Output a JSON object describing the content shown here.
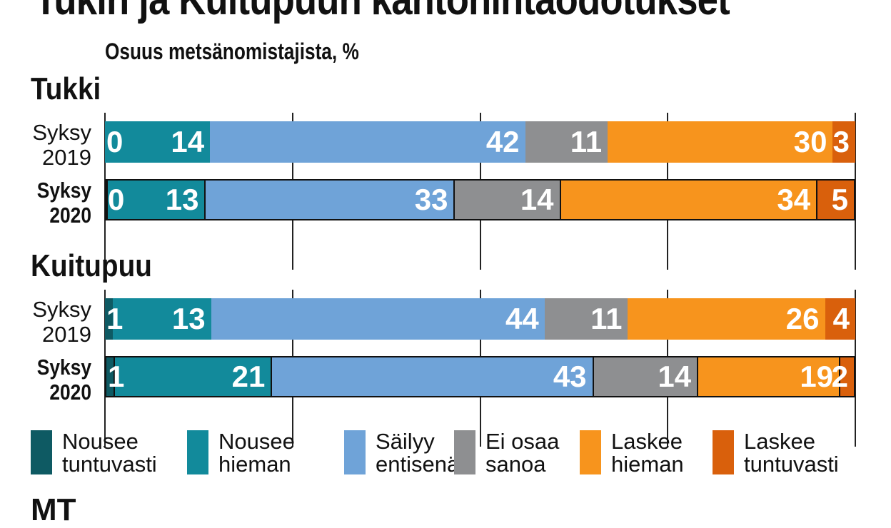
{
  "title": "Tukin ja Kuitupuun kantohintaodotukset",
  "subtitle": "Osuus metsänomistajista, %",
  "footer_fragment": "MT",
  "chart_data": {
    "type": "bar",
    "orientation": "horizontal-stacked",
    "title": "Tukin ja Kuitupuun kantohintaodotukset",
    "subtitle": "Osuus metsänomistajista, %",
    "xlim": [
      0,
      100
    ],
    "grid": true,
    "legend_position": "bottom",
    "series": [
      {
        "name": "Nousee tuntuvasti",
        "label": "Nousee\ntuntuvasti",
        "color": "#0e5a63"
      },
      {
        "name": "Nousee hieman",
        "label": "Nousee\nhieman",
        "color": "#128a9b"
      },
      {
        "name": "Säilyy entisenä",
        "label": "Säilyy\nentisenä",
        "color": "#6fa3d8"
      },
      {
        "name": "Ei osaa sanoa",
        "label": "Ei osaa\nsanoa",
        "color": "#8e8f91"
      },
      {
        "name": "Laskee hieman",
        "label": "Laskee\nhieman",
        "color": "#f7941d"
      },
      {
        "name": "Laskee tuntuvasti",
        "label": "Laskee\ntuntuvasti",
        "color": "#d9600c"
      }
    ],
    "groups": [
      {
        "name": "Tukki",
        "rows": [
          {
            "label": "Syksy\n2019",
            "bold": false,
            "values": [
              0,
              14,
              42,
              11,
              30,
              3
            ]
          },
          {
            "label": "Syksy\n2020",
            "bold": true,
            "values": [
              0,
              13,
              33,
              14,
              34,
              5
            ]
          }
        ]
      },
      {
        "name": "Kuitupuu",
        "rows": [
          {
            "label": "Syksy\n2019",
            "bold": false,
            "values": [
              1,
              13,
              44,
              11,
              26,
              4
            ]
          },
          {
            "label": "Syksy\n2020",
            "bold": true,
            "values": [
              1,
              21,
              43,
              14,
              19,
              2
            ]
          }
        ]
      }
    ]
  }
}
